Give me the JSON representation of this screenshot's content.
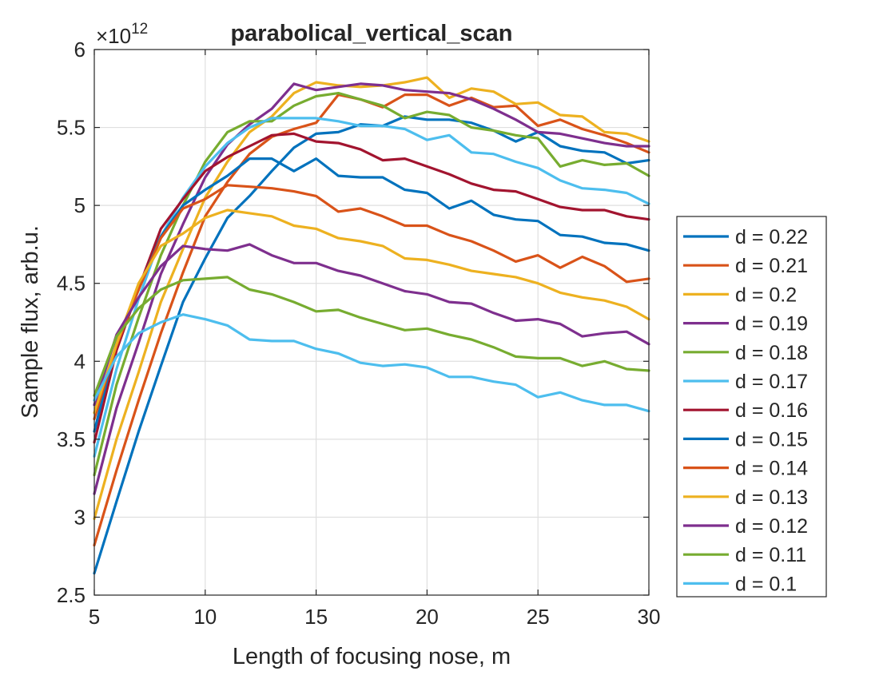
{
  "chart_data": {
    "type": "line",
    "title": "parabolical_vertical_scan",
    "xlabel": "Length of focusing nose, m",
    "ylabel": "Sample flux, arb.u.",
    "xlim": [
      5,
      30
    ],
    "ylim": [
      2.5,
      6
    ],
    "y_exponent_label": "×10",
    "y_exponent_power": "12",
    "xticks": [
      5,
      10,
      15,
      20,
      25,
      30
    ],
    "xtick_labels": [
      "5",
      "10",
      "15",
      "20",
      "25",
      "30"
    ],
    "yticks": [
      2.5,
      3,
      3.5,
      4,
      4.5,
      5,
      5.5,
      6
    ],
    "ytick_labels": [
      "2.5",
      "3",
      "3.5",
      "4",
      "4.5",
      "5",
      "5.5",
      "6"
    ],
    "grid": true,
    "legend_position": "outside-right",
    "x": [
      5,
      6,
      7,
      8,
      9,
      10,
      11,
      12,
      13,
      14,
      15,
      16,
      17,
      18,
      19,
      20,
      21,
      22,
      23,
      24,
      25,
      26,
      27,
      28,
      29,
      30
    ],
    "series": [
      {
        "name": "d = 0.22",
        "color": "#0072BD",
        "values": [
          2.64,
          3.1,
          3.55,
          3.97,
          4.38,
          4.66,
          4.92,
          5.06,
          5.22,
          5.37,
          5.46,
          5.47,
          5.52,
          5.51,
          5.57,
          5.55,
          5.55,
          5.53,
          5.48,
          5.41,
          5.47,
          5.38,
          5.35,
          5.34,
          5.27,
          5.29
        ]
      },
      {
        "name": "d = 0.21",
        "color": "#D95319",
        "values": [
          2.82,
          3.3,
          3.75,
          4.18,
          4.57,
          4.93,
          5.15,
          5.33,
          5.44,
          5.49,
          5.53,
          5.71,
          5.68,
          5.63,
          5.71,
          5.71,
          5.64,
          5.69,
          5.63,
          5.64,
          5.51,
          5.55,
          5.49,
          5.45,
          5.4,
          5.34
        ]
      },
      {
        "name": "d = 0.2",
        "color": "#EDB120",
        "values": [
          2.99,
          3.5,
          3.93,
          4.38,
          4.72,
          5.05,
          5.28,
          5.47,
          5.57,
          5.72,
          5.79,
          5.77,
          5.76,
          5.77,
          5.79,
          5.82,
          5.69,
          5.75,
          5.73,
          5.65,
          5.66,
          5.58,
          5.57,
          5.47,
          5.46,
          5.41
        ]
      },
      {
        "name": "d = 0.19",
        "color": "#7E2F8E",
        "values": [
          3.15,
          3.7,
          4.12,
          4.56,
          4.88,
          5.18,
          5.39,
          5.52,
          5.62,
          5.78,
          5.74,
          5.76,
          5.78,
          5.77,
          5.74,
          5.73,
          5.72,
          5.68,
          5.62,
          5.55,
          5.47,
          5.46,
          5.43,
          5.4,
          5.38,
          5.38
        ]
      },
      {
        "name": "d = 0.18",
        "color": "#77AC30",
        "values": [
          3.27,
          3.85,
          4.28,
          4.68,
          5.0,
          5.28,
          5.47,
          5.54,
          5.54,
          5.64,
          5.7,
          5.72,
          5.68,
          5.64,
          5.56,
          5.6,
          5.58,
          5.5,
          5.48,
          5.45,
          5.43,
          5.25,
          5.29,
          5.26,
          5.27,
          5.19
        ]
      },
      {
        "name": "d = 0.17",
        "color": "#4DBEEE",
        "values": [
          3.39,
          3.95,
          4.4,
          4.8,
          5.05,
          5.25,
          5.4,
          5.5,
          5.56,
          5.56,
          5.56,
          5.54,
          5.51,
          5.51,
          5.49,
          5.42,
          5.45,
          5.34,
          5.33,
          5.28,
          5.24,
          5.16,
          5.11,
          5.1,
          5.08,
          5.01
        ]
      },
      {
        "name": "d = 0.16",
        "color": "#A2142F",
        "values": [
          3.48,
          4.07,
          4.47,
          4.85,
          5.04,
          5.22,
          5.31,
          5.38,
          5.45,
          5.46,
          5.41,
          5.4,
          5.36,
          5.29,
          5.3,
          5.25,
          5.2,
          5.14,
          5.1,
          5.09,
          5.04,
          4.99,
          4.97,
          4.97,
          4.93,
          4.91
        ]
      },
      {
        "name": "d = 0.15",
        "color": "#0072BD",
        "values": [
          3.55,
          4.12,
          4.46,
          4.8,
          5.0,
          5.1,
          5.19,
          5.3,
          5.3,
          5.22,
          5.3,
          5.19,
          5.18,
          5.18,
          5.1,
          5.08,
          4.98,
          5.03,
          4.94,
          4.91,
          4.9,
          4.81,
          4.8,
          4.76,
          4.75,
          4.71
        ]
      },
      {
        "name": "d = 0.14",
        "color": "#D95319",
        "values": [
          3.63,
          4.1,
          4.46,
          4.79,
          4.98,
          5.04,
          5.13,
          5.12,
          5.11,
          5.09,
          5.06,
          4.96,
          4.98,
          4.93,
          4.87,
          4.87,
          4.81,
          4.77,
          4.71,
          4.64,
          4.68,
          4.6,
          4.67,
          4.61,
          4.51,
          4.53
        ]
      },
      {
        "name": "d = 0.13",
        "color": "#EDB120",
        "values": [
          3.67,
          4.11,
          4.5,
          4.74,
          4.82,
          4.92,
          4.97,
          4.95,
          4.93,
          4.87,
          4.85,
          4.79,
          4.77,
          4.74,
          4.66,
          4.65,
          4.62,
          4.58,
          4.56,
          4.54,
          4.5,
          4.44,
          4.41,
          4.39,
          4.35,
          4.27
        ]
      },
      {
        "name": "d = 0.12",
        "color": "#7E2F8E",
        "values": [
          3.72,
          4.17,
          4.41,
          4.61,
          4.74,
          4.72,
          4.71,
          4.75,
          4.68,
          4.63,
          4.63,
          4.58,
          4.55,
          4.5,
          4.45,
          4.43,
          4.38,
          4.37,
          4.31,
          4.26,
          4.27,
          4.24,
          4.16,
          4.18,
          4.19,
          4.11
        ]
      },
      {
        "name": "d = 0.11",
        "color": "#77AC30",
        "values": [
          3.78,
          4.16,
          4.34,
          4.46,
          4.52,
          4.53,
          4.54,
          4.46,
          4.43,
          4.38,
          4.32,
          4.33,
          4.28,
          4.24,
          4.2,
          4.21,
          4.17,
          4.14,
          4.09,
          4.03,
          4.02,
          4.02,
          3.97,
          4.0,
          3.95,
          3.94
        ]
      },
      {
        "name": "d = 0.1",
        "color": "#4DBEEE",
        "values": [
          3.75,
          4.03,
          4.18,
          4.25,
          4.3,
          4.27,
          4.23,
          4.14,
          4.13,
          4.13,
          4.08,
          4.05,
          3.99,
          3.97,
          3.98,
          3.96,
          3.9,
          3.9,
          3.87,
          3.85,
          3.77,
          3.8,
          3.75,
          3.72,
          3.72,
          3.68
        ]
      }
    ]
  }
}
